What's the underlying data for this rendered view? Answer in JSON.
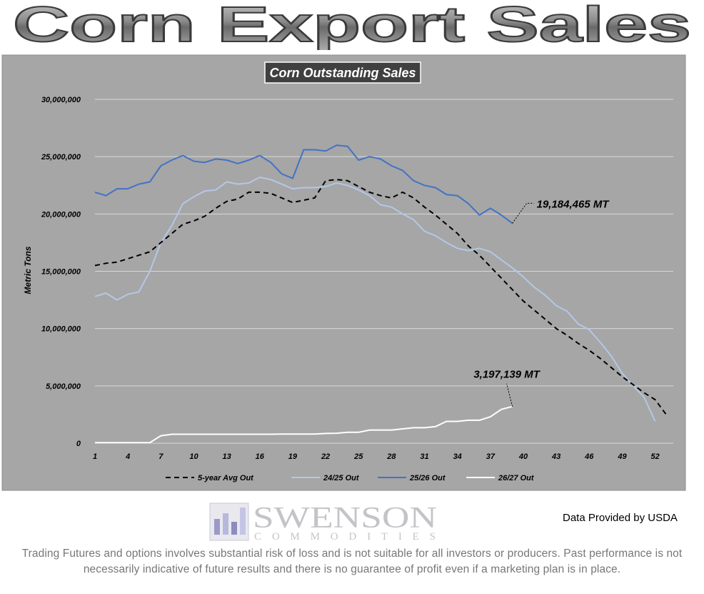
{
  "page": {
    "banner_title": "Corn Export Sales",
    "data_credit": "Data Provided by USDA",
    "disclaimer": "Trading Futures and options involves substantial risk of loss and is not suitable for all investors or producers. Past performance is not necessarily indicative of future results and there is no guarantee of profit even if a marketing plan is in place.",
    "logo_main": "SWENSON",
    "logo_sub": "COMMODITIES"
  },
  "colors": {
    "panel_bg": "#a6a6a6",
    "grid": "#d9d9d9",
    "five_year": "#000000",
    "y2425": "#b4c7e7",
    "y2526": "#4472c4",
    "y2627": "#ffffff"
  },
  "chart_data": {
    "type": "line",
    "title": "Corn Outstanding Sales",
    "xlabel": "",
    "ylabel": "Metric Tons",
    "xlim": [
      1,
      53
    ],
    "ylim": [
      0,
      30000000
    ],
    "x_ticks": [
      1,
      4,
      7,
      10,
      13,
      16,
      19,
      22,
      25,
      28,
      31,
      34,
      37,
      40,
      43,
      46,
      49,
      52
    ],
    "y_ticks": [
      0,
      5000000,
      10000000,
      15000000,
      20000000,
      25000000,
      30000000
    ],
    "y_tick_labels": [
      "0",
      "5,000,000",
      "10,000,000",
      "15,000,000",
      "20,000,000",
      "25,000,000",
      "30,000,000"
    ],
    "grid": true,
    "legend_position": "bottom",
    "series": [
      {
        "name": "5-year Avg Out",
        "style": "dashed",
        "x": [
          1,
          2,
          3,
          4,
          5,
          6,
          7,
          8,
          9,
          10,
          11,
          12,
          13,
          14,
          15,
          16,
          17,
          18,
          19,
          20,
          21,
          22,
          23,
          24,
          25,
          26,
          27,
          28,
          29,
          30,
          31,
          32,
          33,
          34,
          35,
          36,
          37,
          38,
          39,
          40,
          41,
          42,
          43,
          44,
          45,
          46,
          47,
          48,
          49,
          50,
          51,
          52,
          53
        ],
        "values": [
          15500000,
          15700000,
          15800000,
          16100000,
          16400000,
          16700000,
          17500000,
          18300000,
          19100000,
          19400000,
          19800000,
          20500000,
          21100000,
          21300000,
          21900000,
          21900000,
          21800000,
          21400000,
          21000000,
          21200000,
          21400000,
          22900000,
          23000000,
          22900000,
          22400000,
          21900000,
          21600000,
          21400000,
          21900000,
          21400000,
          20600000,
          19900000,
          19100000,
          18300000,
          17200000,
          16400000,
          15400000,
          14400000,
          13400000,
          12400000,
          11600000,
          10800000,
          10000000,
          9400000,
          8700000,
          8100000,
          7400000,
          6600000,
          5800000,
          5100000,
          4400000,
          3800000,
          2500000
        ]
      },
      {
        "name": "24/25 Out",
        "style": "solid",
        "x": [
          1,
          2,
          3,
          4,
          5,
          6,
          7,
          8,
          9,
          10,
          11,
          12,
          13,
          14,
          15,
          16,
          17,
          18,
          19,
          20,
          21,
          22,
          23,
          24,
          25,
          26,
          27,
          28,
          29,
          30,
          31,
          32,
          33,
          34,
          35,
          36,
          37,
          38,
          39,
          40,
          41,
          42,
          43,
          44,
          45,
          46,
          47,
          48,
          49,
          50,
          51,
          52
        ],
        "values": [
          12800000,
          13100000,
          12500000,
          13000000,
          13200000,
          15000000,
          17500000,
          19000000,
          20900000,
          21500000,
          22000000,
          22100000,
          22800000,
          22600000,
          22700000,
          23200000,
          23000000,
          22600000,
          22200000,
          22300000,
          22300000,
          22400000,
          22700000,
          22500000,
          22100000,
          21600000,
          20800000,
          20600000,
          20000000,
          19500000,
          18500000,
          18100000,
          17500000,
          17000000,
          16800000,
          17000000,
          16700000,
          16000000,
          15300000,
          14500000,
          13600000,
          12900000,
          12000000,
          11500000,
          10400000,
          9900000,
          8800000,
          7600000,
          6100000,
          5000000,
          4000000,
          1900000
        ]
      },
      {
        "name": "25/26 Out",
        "style": "solid",
        "x": [
          1,
          2,
          3,
          4,
          5,
          6,
          7,
          8,
          9,
          10,
          11,
          12,
          13,
          14,
          15,
          16,
          17,
          18,
          19,
          20,
          21,
          22,
          23,
          24,
          25,
          26,
          27,
          28,
          29,
          30,
          31,
          32,
          33,
          34,
          35,
          36,
          37,
          38,
          39
        ],
        "values": [
          21900000,
          21600000,
          22200000,
          22200000,
          22600000,
          22800000,
          24200000,
          24700000,
          25100000,
          24600000,
          24500000,
          24800000,
          24700000,
          24400000,
          24700000,
          25100000,
          24500000,
          23500000,
          23100000,
          25600000,
          25600000,
          25500000,
          26000000,
          25900000,
          24700000,
          25000000,
          24800000,
          24200000,
          23800000,
          22900000,
          22500000,
          22300000,
          21700000,
          21600000,
          20900000,
          19900000,
          20500000,
          19900000,
          19184465
        ]
      },
      {
        "name": "26/27 Out",
        "style": "solid",
        "x": [
          1,
          2,
          3,
          4,
          5,
          6,
          7,
          8,
          9,
          10,
          11,
          12,
          13,
          14,
          15,
          16,
          17,
          18,
          19,
          20,
          21,
          22,
          23,
          24,
          25,
          26,
          27,
          28,
          29,
          30,
          31,
          32,
          33,
          34,
          35,
          36,
          37,
          38,
          39
        ],
        "values": [
          50000,
          50000,
          50000,
          50000,
          50000,
          50000,
          650000,
          780000,
          780000,
          780000,
          780000,
          780000,
          780000,
          780000,
          780000,
          780000,
          780000,
          800000,
          800000,
          800000,
          800000,
          850000,
          870000,
          950000,
          950000,
          1150000,
          1150000,
          1150000,
          1250000,
          1350000,
          1350000,
          1450000,
          1900000,
          1900000,
          2000000,
          2000000,
          2300000,
          2950000,
          3197139
        ]
      }
    ],
    "annotations": [
      {
        "text": "19,184,465 MT",
        "x": 39,
        "y": 19184465,
        "series": "25/26 Out"
      },
      {
        "text": "3,197,139 MT",
        "x": 39,
        "y": 3197139,
        "series": "26/27 Out"
      }
    ]
  }
}
